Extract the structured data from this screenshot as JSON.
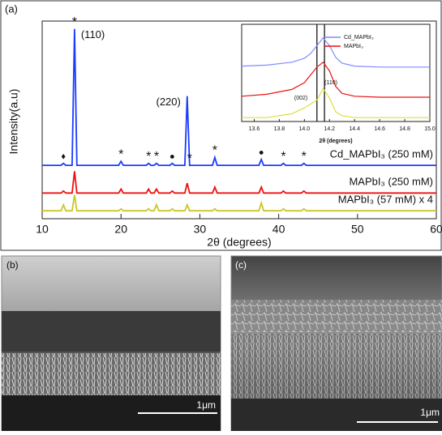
{
  "panel_label": "(a)",
  "chart_data": {
    "type": "line",
    "xlabel": "2θ (degrees)",
    "ylabel": "Intensity(a.u)",
    "xlim": [
      10,
      60
    ],
    "ylim": [
      0,
      100
    ],
    "xticks": [
      10,
      20,
      30,
      40,
      50,
      60
    ],
    "x": [
      10,
      12.4,
      12.7,
      13.0,
      13.8,
      14.1,
      14.4,
      19.7,
      20.0,
      20.3,
      23.2,
      23.5,
      23.8,
      24.2,
      24.5,
      24.8,
      26.2,
      26.5,
      26.8,
      28.1,
      28.4,
      28.7,
      31.6,
      31.9,
      32.2,
      37.5,
      37.8,
      38.1,
      40.3,
      40.6,
      40.9,
      42.9,
      43.2,
      43.5,
      60
    ],
    "series": [
      {
        "name": "Cd_MAPbI₃ (250 mM)",
        "color": "#1a3cff",
        "values": [
          27,
          27,
          28,
          27,
          27,
          96,
          27,
          27,
          29,
          27,
          27,
          28,
          27,
          27,
          28,
          27,
          27,
          28,
          27,
          27,
          62,
          27,
          27,
          31,
          27,
          27,
          30,
          27,
          27,
          28,
          27,
          27,
          28,
          27,
          27
        ]
      },
      {
        "name": "MAPbI₃ (250 mM)",
        "color": "#ee1111",
        "values": [
          13,
          13,
          14,
          13,
          13,
          24,
          13,
          13,
          15,
          13,
          13,
          15,
          13,
          13,
          15,
          13,
          13,
          14,
          13,
          13,
          18,
          13,
          13,
          16,
          13,
          13,
          16,
          13,
          13,
          14,
          13,
          13,
          14,
          13,
          13
        ]
      },
      {
        "name": "MAPbI₃ (57 mM) x 4",
        "color": "#c8c828",
        "values": [
          4,
          4,
          7,
          4,
          4,
          12,
          4,
          4,
          5,
          4,
          4,
          5,
          4,
          4,
          7,
          4,
          4,
          5,
          4,
          4,
          7,
          4,
          4,
          5,
          4,
          4,
          8,
          4,
          4,
          5,
          4,
          4,
          5,
          4,
          4
        ]
      }
    ],
    "peak_labels": [
      {
        "text": "(110)",
        "x": 14.1
      },
      {
        "text": "(220)",
        "x": 28.4
      }
    ],
    "peak_markers": [
      {
        "symbol": "♦",
        "x": 12.7
      },
      {
        "symbol": "*",
        "x": 14.1
      },
      {
        "symbol": "*",
        "x": 20.0
      },
      {
        "symbol": "*",
        "x": 23.5
      },
      {
        "symbol": "*",
        "x": 24.5
      },
      {
        "symbol": "●",
        "x": 26.5
      },
      {
        "symbol": "*",
        "x": 28.7
      },
      {
        "symbol": "*",
        "x": 31.9
      },
      {
        "symbol": "●",
        "x": 37.8
      },
      {
        "symbol": "*",
        "x": 40.6
      },
      {
        "symbol": "*",
        "x": 43.2
      }
    ],
    "inset": {
      "type": "line",
      "xlabel": "2θ (degrees)",
      "xlim": [
        13.5,
        15.0
      ],
      "ylim": [
        0,
        100
      ],
      "xticks": [
        13.6,
        13.8,
        {
          "value": 14,
          "label": "14.0"
        },
        14.2,
        14.4,
        14.6,
        14.8,
        {
          "value": 15,
          "label": "15.0"
        }
      ],
      "x": [
        13.5,
        13.7,
        13.9,
        14.0,
        14.05,
        14.1,
        14.15,
        14.2,
        14.25,
        14.3,
        14.4,
        14.6,
        15.0
      ],
      "series": [
        {
          "name": "Cd_MAPbI₃",
          "color": "#7f8cff",
          "values": [
            57,
            58,
            61,
            65,
            70,
            78,
            86,
            78,
            66,
            60,
            57,
            56,
            56
          ]
        },
        {
          "name": "MAPbI₃",
          "color": "#ee1111",
          "values": [
            26,
            28,
            33,
            40,
            48,
            56,
            61,
            52,
            36,
            29,
            26,
            25,
            25
          ]
        },
        {
          "color": "#dede40",
          "values": [
            4,
            4,
            8,
            14,
            18,
            22,
            34,
            24,
            10,
            6,
            4,
            4,
            4
          ]
        }
      ],
      "reference_lines": [
        14.1,
        14.16
      ],
      "peak_labels": [
        {
          "text": "(002)",
          "x": 14.05
        },
        {
          "text": "(110)",
          "x": 14.16
        }
      ]
    }
  },
  "sem_panels": [
    {
      "label": "(b)",
      "scale_bar": "1μm"
    },
    {
      "label": "(c)",
      "scale_bar": "1μm"
    }
  ]
}
